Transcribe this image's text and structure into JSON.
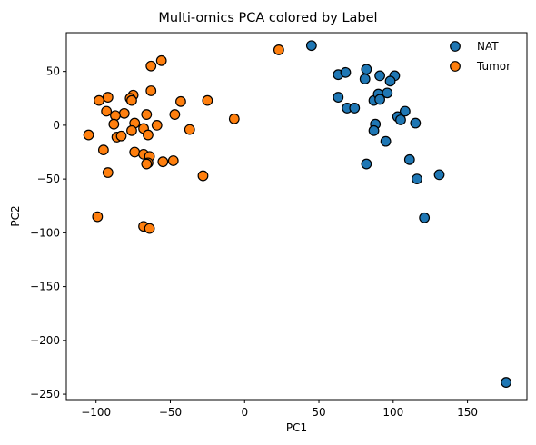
{
  "chart_data": {
    "type": "scatter",
    "title": "Multi-omics PCA colored by Label",
    "xlabel": "PC1",
    "ylabel": "PC2",
    "xlim": [
      -120,
      190
    ],
    "ylim": [
      -255,
      86
    ],
    "xticks": [
      -100,
      -50,
      0,
      50,
      100,
      150
    ],
    "yticks": [
      50,
      0,
      -50,
      -100,
      -150,
      -200,
      -250
    ],
    "grid": false,
    "legend_position": "top-right",
    "series": [
      {
        "name": "NAT",
        "color": "#1f77b4",
        "points": [
          [
            45,
            74
          ],
          [
            63,
            47
          ],
          [
            68,
            49
          ],
          [
            82,
            52
          ],
          [
            81,
            43
          ],
          [
            91,
            46
          ],
          [
            101,
            46
          ],
          [
            98,
            41
          ],
          [
            63,
            26
          ],
          [
            69,
            16
          ],
          [
            74,
            16
          ],
          [
            87,
            23
          ],
          [
            90,
            29
          ],
          [
            91,
            24
          ],
          [
            96,
            30
          ],
          [
            108,
            13
          ],
          [
            103,
            8
          ],
          [
            105,
            5
          ],
          [
            115,
            2
          ],
          [
            88,
            1
          ],
          [
            87,
            -5
          ],
          [
            95,
            -15
          ],
          [
            82,
            -36
          ],
          [
            111,
            -32
          ],
          [
            116,
            -50
          ],
          [
            131,
            -46
          ],
          [
            121,
            -86
          ],
          [
            176,
            -239
          ]
        ]
      },
      {
        "name": "Tumor",
        "color": "#ff7f0e",
        "points": [
          [
            23,
            70
          ],
          [
            -56,
            60
          ],
          [
            -63,
            55
          ],
          [
            -63,
            32
          ],
          [
            -75,
            28
          ],
          [
            -77,
            25
          ],
          [
            -76,
            23
          ],
          [
            -92,
            26
          ],
          [
            -98,
            23
          ],
          [
            -43,
            22
          ],
          [
            -25,
            23
          ],
          [
            -93,
            13
          ],
          [
            -81,
            11
          ],
          [
            -87,
            9
          ],
          [
            -66,
            10
          ],
          [
            -47,
            10
          ],
          [
            -7,
            6
          ],
          [
            -74,
            2
          ],
          [
            -88,
            1
          ],
          [
            -59,
            0
          ],
          [
            -37,
            -4
          ],
          [
            -76,
            -5
          ],
          [
            -68,
            -3
          ],
          [
            -86,
            -11
          ],
          [
            -83,
            -10
          ],
          [
            -65,
            -9
          ],
          [
            -105,
            -9
          ],
          [
            -95,
            -23
          ],
          [
            -74,
            -25
          ],
          [
            -68,
            -27
          ],
          [
            -64,
            -29
          ],
          [
            -65,
            -35
          ],
          [
            -66,
            -36
          ],
          [
            -55,
            -34
          ],
          [
            -48,
            -33
          ],
          [
            -92,
            -44
          ],
          [
            -28,
            -47
          ],
          [
            -99,
            -85
          ],
          [
            -68,
            -94
          ],
          [
            -64,
            -96
          ]
        ]
      }
    ]
  }
}
